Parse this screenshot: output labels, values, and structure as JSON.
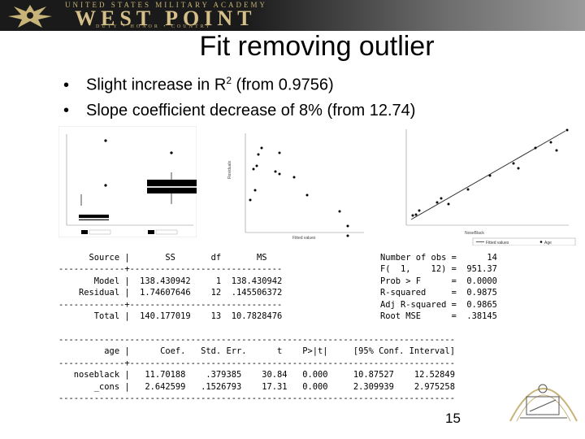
{
  "banner": {
    "top_text": "UNITED STATES MILITARY ACADEMY",
    "main_text": "WEST POINT",
    "sub_text": "DUTY • HONOR • COUNTRY"
  },
  "slide": {
    "title": "Fit removing outlier",
    "bullets": [
      {
        "pre": "Slight increase in R",
        "sup": "2",
        "post": " (from 0.9756)"
      },
      {
        "pre": "Slope coefficient decrease of 8% (from 12.74)",
        "sup": "",
        "post": ""
      }
    ],
    "page_number": "15"
  },
  "stata": {
    "anova_lines": [
      "      Source |       SS       df       MS",
      "-------------+------------------------------",
      "       Model |  138.430942     1  138.430942",
      "    Residual |  1.74607646    12  .145506372",
      "-------------+------------------------------",
      "       Total |  140.177019    13  10.7828476"
    ],
    "fit_lines": [
      "Number of obs =      14",
      "F(  1,    12) =  951.37",
      "Prob > F      =  0.0000",
      "R-squared     =  0.9875",
      "Adj R-squared =  0.9865",
      "Root MSE      =  .38145"
    ],
    "coef_lines": [
      "------------------------------------------------------------------------------",
      "         age |      Coef.   Std. Err.      t    P>|t|     [95% Conf. Interval]",
      "-------------+----------------------------------------------------------------",
      "   noseblack |   11.70188    .379385    30.84   0.000     10.87527    12.52849",
      "       _cons |   2.642599   .1526793    17.31   0.000     2.309939    2.975258",
      "------------------------------------------------------------------------------"
    ]
  },
  "plots": {
    "fitted_xlabel": "Fitted values",
    "fitted_ylabel": "Residuals",
    "scatter_xlabel": "NoseBlack",
    "legend_items": [
      "Fitted values",
      "Age"
    ]
  },
  "colors": {
    "box_fill": "#000000",
    "plot_bg": "#ffffff",
    "banner_gold": "#d6c089"
  }
}
